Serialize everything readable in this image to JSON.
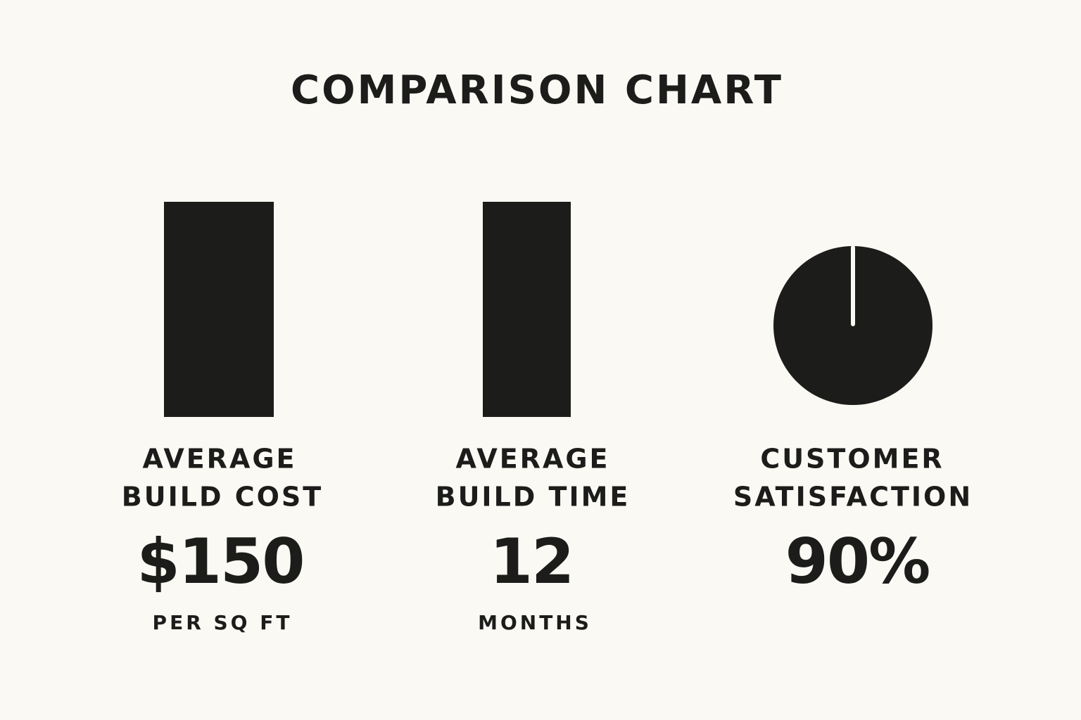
{
  "header": {
    "title": "COMPARISON CHART"
  },
  "items": [
    {
      "label": [
        "AVERAGE",
        "BUILD COST"
      ],
      "value": "$150",
      "unit": "PER SQ FT"
    },
    {
      "label": [
        "AVERAGE",
        "BUILD TIME"
      ],
      "value": "12",
      "unit": "MONTHS"
    },
    {
      "label": [
        "CUSTOMER",
        "SATISFACTION"
      ],
      "value": "90%"
    }
  ]
}
